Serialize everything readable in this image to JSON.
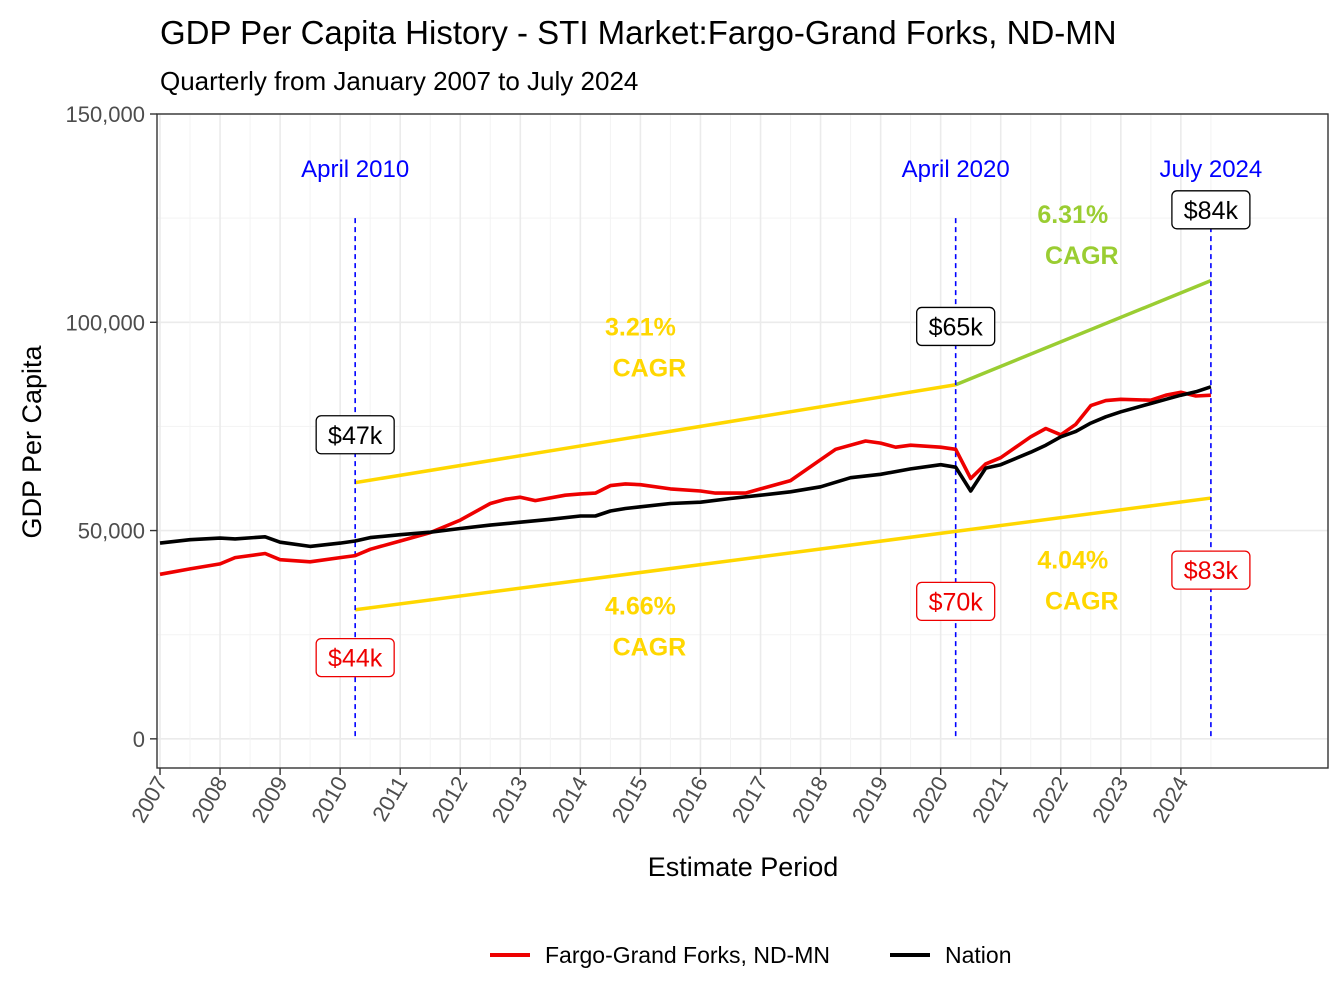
{
  "chart_data": {
    "type": "line",
    "title": "GDP Per Capita History - STI Market:Fargo-Grand Forks, ND-MN",
    "subtitle": "Quarterly from January 2007 to July 2024",
    "xlabel": "Estimate Period",
    "ylabel": "GDP Per Capita",
    "xlim": [
      2006.95,
      2026.45
    ],
    "ylim": [
      -7000,
      150000
    ],
    "y_ticks": [
      0,
      50000,
      100000,
      150000
    ],
    "y_tick_labels": [
      "0",
      "50,000",
      "100,000",
      "150,000"
    ],
    "x_ticks": [
      2007,
      2008,
      2009,
      2010,
      2011,
      2012,
      2013,
      2014,
      2015,
      2016,
      2017,
      2018,
      2019,
      2020,
      2021,
      2022,
      2023,
      2024
    ],
    "x_tick_labels": [
      "2007",
      "2008",
      "2009",
      "2010",
      "2011",
      "2012",
      "2013",
      "2014",
      "2015",
      "2016",
      "2017",
      "2018",
      "2019",
      "2020",
      "2021",
      "2022",
      "2023",
      "2024"
    ],
    "legend_position": "bottom",
    "series": [
      {
        "name": "Fargo-Grand Forks, ND-MN",
        "color": "#ee0000",
        "x": [
          2007,
          2007.5,
          2008,
          2008.25,
          2008.75,
          2009,
          2009.5,
          2010,
          2010.25,
          2010.5,
          2011,
          2011.5,
          2012,
          2012.5,
          2012.75,
          2013,
          2013.25,
          2013.75,
          2014,
          2014.25,
          2014.5,
          2014.75,
          2015,
          2015.5,
          2016,
          2016.25,
          2016.75,
          2017,
          2017.5,
          2018,
          2018.25,
          2018.75,
          2019,
          2019.25,
          2019.5,
          2020,
          2020.25,
          2020.5,
          2020.75,
          2021,
          2021.5,
          2021.75,
          2022,
          2022.25,
          2022.5,
          2022.75,
          2023,
          2023.5,
          2023.75,
          2024,
          2024.25,
          2024.5
        ],
        "values": [
          39500,
          40800,
          42000,
          43500,
          44500,
          43000,
          42500,
          43500,
          44000,
          45500,
          47500,
          49500,
          52500,
          56500,
          57500,
          58000,
          57200,
          58500,
          58800,
          59000,
          60800,
          61200,
          61000,
          60000,
          59500,
          59000,
          59000,
          60000,
          62000,
          67000,
          69500,
          71500,
          71000,
          70000,
          70500,
          70000,
          69500,
          62500,
          66000,
          67500,
          72500,
          74500,
          73000,
          75500,
          80000,
          81200,
          81500,
          81300,
          82500,
          83200,
          82300,
          82500
        ]
      },
      {
        "name": "Nation",
        "color": "#000000",
        "x": [
          2007,
          2007.5,
          2008,
          2008.25,
          2008.75,
          2009,
          2009.5,
          2010,
          2010.25,
          2010.5,
          2011,
          2011.5,
          2012,
          2012.5,
          2013,
          2013.5,
          2014,
          2014.25,
          2014.5,
          2014.75,
          2015,
          2015.5,
          2016,
          2016.5,
          2017,
          2017.5,
          2018,
          2018.5,
          2019,
          2019.5,
          2020,
          2020.25,
          2020.5,
          2020.75,
          2021,
          2021.5,
          2021.75,
          2022,
          2022.25,
          2022.5,
          2022.75,
          2023,
          2023.5,
          2023.75,
          2024,
          2024.25,
          2024.5
        ],
        "values": [
          47000,
          47800,
          48200,
          48000,
          48500,
          47200,
          46200,
          47000,
          47500,
          48300,
          49000,
          49600,
          50500,
          51300,
          52000,
          52700,
          53500,
          53500,
          54700,
          55300,
          55700,
          56500,
          56800,
          57700,
          58500,
          59300,
          60500,
          62700,
          63500,
          64800,
          65800,
          65200,
          59500,
          65000,
          65800,
          68800,
          70500,
          72500,
          73800,
          75800,
          77300,
          78500,
          80500,
          81500,
          82500,
          83300,
          84500
        ]
      }
    ],
    "vertical_markers": [
      {
        "x": 2010.25,
        "label": "April 2010"
      },
      {
        "x": 2020.25,
        "label": "April 2020"
      },
      {
        "x": 2024.5,
        "label": "July 2024"
      }
    ],
    "trend_lines": [
      {
        "name": "nation_upper",
        "x": [
          2010.25,
          2020.25
        ],
        "values": [
          61500,
          85000
        ],
        "color": "#ffd700"
      },
      {
        "name": "nation_upper_recent",
        "x": [
          2020.25,
          2024.5
        ],
        "values": [
          85000,
          110000
        ],
        "color": "#9acd32"
      },
      {
        "name": "local_lower",
        "x": [
          2010.25,
          2024.5
        ],
        "values": [
          31000,
          57800
        ],
        "color": "#ffd700"
      }
    ],
    "cagr_labels": [
      {
        "pct": "3.21%",
        "word": "CAGR",
        "color": "#ffd700",
        "x": 2015.1,
        "y": 94000
      },
      {
        "pct": "6.31%",
        "word": "CAGR",
        "color": "#9acd32",
        "x": 2022.3,
        "y": 121000
      },
      {
        "pct": "4.66%",
        "word": "CAGR",
        "color": "#ffd700",
        "x": 2015.1,
        "y": 27000
      },
      {
        "pct": "4.04%",
        "word": "CAGR",
        "color": "#ffd700",
        "x": 2022.3,
        "y": 38000
      }
    ],
    "value_labels": [
      {
        "text": "$47k",
        "x": 2010.25,
        "y": 73000,
        "color": "#000000"
      },
      {
        "text": "$65k",
        "x": 2020.25,
        "y": 99000,
        "color": "#000000"
      },
      {
        "text": "$84k",
        "x": 2024.5,
        "y": 127000,
        "color": "#000000"
      },
      {
        "text": "$44k",
        "x": 2010.25,
        "y": 19500,
        "color": "#ee0000"
      },
      {
        "text": "$70k",
        "x": 2020.25,
        "y": 33000,
        "color": "#ee0000"
      },
      {
        "text": "$83k",
        "x": 2024.5,
        "y": 40500,
        "color": "#ee0000"
      }
    ]
  }
}
